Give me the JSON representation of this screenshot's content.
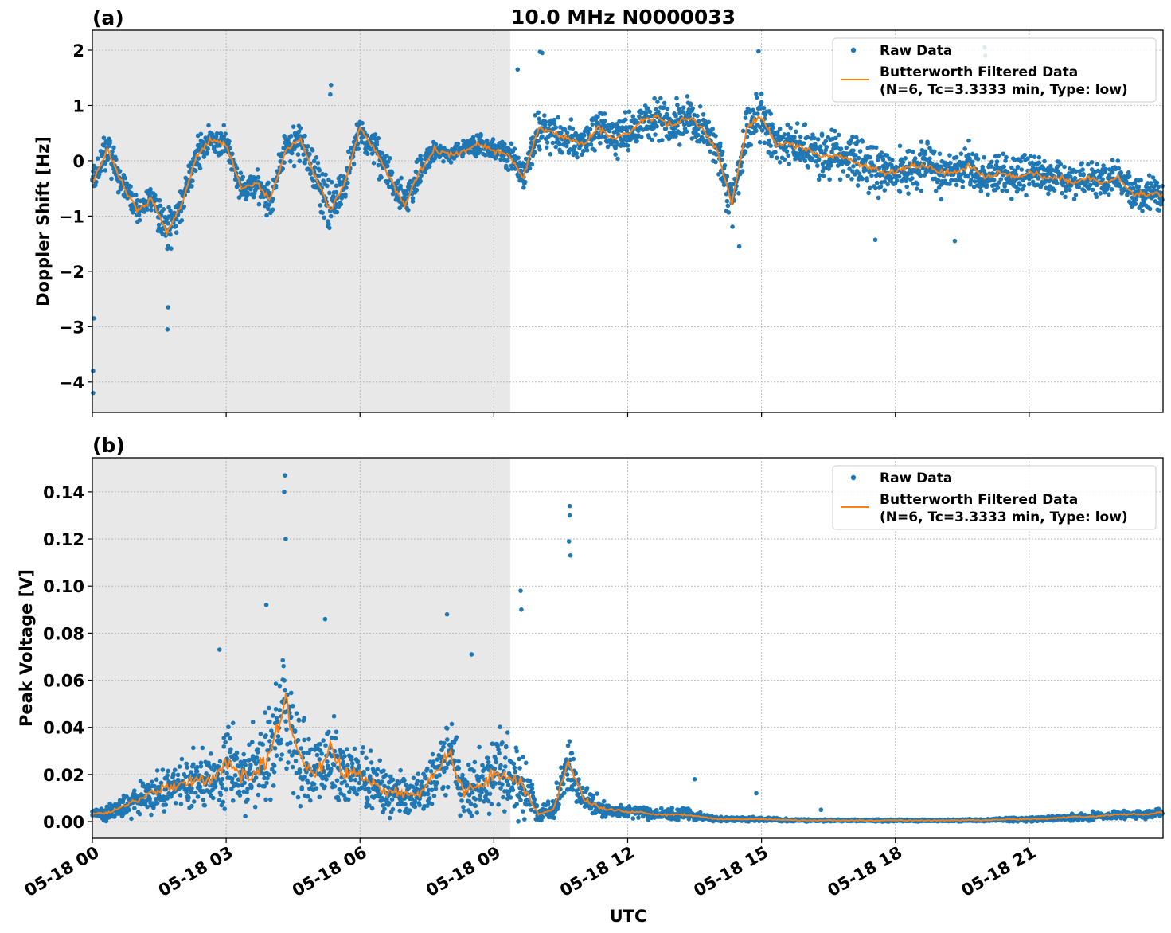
{
  "figure": {
    "title": "10.0 MHz N0000033",
    "xlabel": "UTC"
  },
  "colors": {
    "raw": "#1f77b4",
    "filtered": "#ff7f0e",
    "shading": "#e8e8e8",
    "grid": "#b0b0b0"
  },
  "x_ticks": [
    "05-18 00",
    "05-18 03",
    "05-18 06",
    "05-18 09",
    "05-18 12",
    "05-18 15",
    "05-18 18",
    "05-18 21"
  ],
  "chart_data": [
    {
      "type": "scatter",
      "panel_label": "(a)",
      "ylabel": "Doppler Shift [Hz]",
      "xlim": [
        "05-18 00:00",
        "05-19 00:00"
      ],
      "ylim": [
        -4.55,
        2.36
      ],
      "y_ticks": [
        "2",
        "1",
        "0",
        "−1",
        "−2",
        "−3",
        "−4"
      ],
      "y_tick_values": [
        2,
        1,
        0,
        -1,
        -2,
        -3,
        -4
      ],
      "grid": true,
      "legend_placement": "top-right",
      "shaded_interval": [
        "05-18 00:00",
        "05-18 09:22"
      ],
      "legend": {
        "raw": "Raw Data",
        "filtered_line1": "Butterworth Filtered Data",
        "filtered_line2": "(N=6, Tc=3.3333 min, Type: low)"
      },
      "times": [
        "00:00",
        "00:20",
        "00:40",
        "01:00",
        "01:20",
        "01:40",
        "02:00",
        "02:20",
        "02:40",
        "03:00",
        "03:20",
        "03:40",
        "04:00",
        "04:20",
        "04:40",
        "05:00",
        "05:20",
        "05:40",
        "06:00",
        "06:20",
        "06:40",
        "07:00",
        "07:20",
        "07:40",
        "08:00",
        "08:20",
        "08:40",
        "09:00",
        "09:20",
        "09:40",
        "10:00",
        "10:20",
        "10:40",
        "11:00",
        "11:20",
        "11:40",
        "12:00",
        "12:20",
        "12:40",
        "13:00",
        "13:20",
        "13:40",
        "14:00",
        "14:20",
        "14:40",
        "15:00",
        "15:20",
        "15:40",
        "16:00",
        "16:20",
        "16:40",
        "17:00",
        "17:20",
        "17:40",
        "18:00",
        "18:20",
        "18:40",
        "19:00",
        "19:20",
        "19:40",
        "20:00",
        "20:20",
        "20:40",
        "21:00",
        "21:20",
        "21:40",
        "22:00",
        "22:20",
        "22:40",
        "23:00",
        "23:20",
        "23:40",
        "24:00"
      ],
      "series": [
        {
          "name": "Butterworth Filtered Data",
          "kind": "line",
          "values": [
            -0.4,
            0.2,
            -0.4,
            -0.9,
            -0.7,
            -1.3,
            -0.8,
            0.1,
            0.4,
            0.3,
            -0.5,
            -0.4,
            -0.7,
            0.2,
            0.4,
            -0.3,
            -0.9,
            -0.4,
            0.6,
            0.2,
            -0.3,
            -0.8,
            -0.2,
            0.2,
            0.1,
            0.2,
            0.3,
            0.2,
            0.1,
            -0.3,
            0.6,
            0.5,
            0.4,
            0.3,
            0.6,
            0.4,
            0.5,
            0.7,
            0.8,
            0.6,
            0.8,
            0.6,
            0.2,
            -0.8,
            0.6,
            0.8,
            0.3,
            0.3,
            0.2,
            0.1,
            0.1,
            0.0,
            -0.1,
            -0.2,
            -0.2,
            -0.1,
            -0.1,
            -0.2,
            -0.2,
            -0.1,
            -0.3,
            -0.2,
            -0.3,
            -0.2,
            -0.3,
            -0.3,
            -0.4,
            -0.3,
            -0.4,
            -0.3,
            -0.6,
            -0.6,
            -0.6
          ]
        },
        {
          "name": "Raw Data",
          "kind": "scatter",
          "spread": [
            0.3,
            0.4,
            0.3,
            0.3,
            0.3,
            0.5,
            0.4,
            0.4,
            0.3,
            0.3,
            0.25,
            0.3,
            0.4,
            0.35,
            0.4,
            0.5,
            0.6,
            0.5,
            0.4,
            0.4,
            0.4,
            0.4,
            0.35,
            0.2,
            0.15,
            0.2,
            0.3,
            0.3,
            0.3,
            0.3,
            0.5,
            0.4,
            0.4,
            0.35,
            0.4,
            0.4,
            0.4,
            0.4,
            0.45,
            0.45,
            0.4,
            0.4,
            0.45,
            0.5,
            0.5,
            0.6,
            0.45,
            0.4,
            0.45,
            0.45,
            0.5,
            0.5,
            0.55,
            0.55,
            0.5,
            0.5,
            0.5,
            0.5,
            0.45,
            0.45,
            0.45,
            0.4,
            0.4,
            0.4,
            0.35,
            0.35,
            0.35,
            0.35,
            0.35,
            0.35,
            0.35,
            0.35,
            0.35
          ],
          "outliers": [
            [
              "00:01",
              -4.2
            ],
            [
              "00:01",
              -3.8
            ],
            [
              "00:02",
              -2.85
            ],
            [
              "01:41",
              -3.05
            ],
            [
              "01:42",
              -2.65
            ],
            [
              "05:21",
              1.37
            ],
            [
              "05:20",
              1.2
            ],
            [
              "09:32",
              1.65
            ],
            [
              "10:02",
              1.97
            ],
            [
              "10:05",
              1.95
            ],
            [
              "14:30",
              -1.55
            ],
            [
              "14:56",
              1.98
            ],
            [
              "20:00",
              2.05
            ],
            [
              "20:01",
              1.9
            ],
            [
              "19:20",
              -1.45
            ],
            [
              "17:33",
              -1.43
            ]
          ]
        }
      ]
    },
    {
      "type": "scatter",
      "panel_label": "(b)",
      "ylabel": "Peak Voltage [V]",
      "xlim": [
        "05-18 00:00",
        "05-19 00:00"
      ],
      "ylim": [
        -0.0071,
        0.1545
      ],
      "y_ticks": [
        "0.00",
        "0.02",
        "0.04",
        "0.06",
        "0.08",
        "0.10",
        "0.12",
        "0.14"
      ],
      "y_tick_values": [
        0,
        0.02,
        0.04,
        0.06,
        0.08,
        0.1,
        0.12,
        0.14
      ],
      "grid": true,
      "legend_placement": "top-right",
      "shaded_interval": [
        "05-18 00:00",
        "05-18 09:22"
      ],
      "legend": {
        "raw": "Raw Data",
        "filtered_line1": "Butterworth Filtered Data",
        "filtered_line2": "(N=6, Tc=3.3333 min, Type: low)"
      },
      "series": [
        {
          "name": "Butterworth Filtered Data",
          "kind": "line",
          "values": [
            0.003,
            0.004,
            0.006,
            0.009,
            0.012,
            0.015,
            0.016,
            0.018,
            0.016,
            0.025,
            0.02,
            0.02,
            0.03,
            0.05,
            0.025,
            0.02,
            0.03,
            0.02,
            0.02,
            0.015,
            0.013,
            0.012,
            0.011,
            0.02,
            0.03,
            0.012,
            0.015,
            0.02,
            0.02,
            0.015,
            0.003,
            0.005,
            0.025,
            0.01,
            0.006,
            0.005,
            0.004,
            0.004,
            0.003,
            0.003,
            0.003,
            0.002,
            0.001,
            0.001,
            0.001,
            0.001,
            0.0008,
            0.0006,
            0.0006,
            0.0005,
            0.0005,
            0.0005,
            0.0005,
            0.0005,
            0.0005,
            0.0005,
            0.0005,
            0.0005,
            0.0005,
            0.0006,
            0.0006,
            0.0008,
            0.001,
            0.001,
            0.0012,
            0.0015,
            0.002,
            0.002,
            0.0025,
            0.003,
            0.003,
            0.003,
            0.004
          ]
        },
        {
          "name": "Raw Data",
          "kind": "scatter",
          "spread": [
            0.003,
            0.004,
            0.005,
            0.008,
            0.01,
            0.012,
            0.013,
            0.015,
            0.015,
            0.022,
            0.02,
            0.02,
            0.025,
            0.035,
            0.022,
            0.02,
            0.025,
            0.02,
            0.018,
            0.014,
            0.012,
            0.011,
            0.01,
            0.015,
            0.02,
            0.012,
            0.015,
            0.018,
            0.02,
            0.02,
            0.003,
            0.005,
            0.015,
            0.008,
            0.005,
            0.004,
            0.003,
            0.003,
            0.003,
            0.003,
            0.003,
            0.002,
            0.001,
            0.001,
            0.001,
            0.001,
            0.0008,
            0.0006,
            0.0006,
            0.0005,
            0.0005,
            0.0005,
            0.0005,
            0.0005,
            0.0005,
            0.0005,
            0.0005,
            0.0005,
            0.0005,
            0.0006,
            0.0006,
            0.0008,
            0.001,
            0.001,
            0.0012,
            0.0015,
            0.002,
            0.002,
            0.002,
            0.002,
            0.002,
            0.002,
            0.003
          ],
          "outliers": [
            [
              "04:19",
              0.147
            ],
            [
              "04:18",
              0.14
            ],
            [
              "04:20",
              0.12
            ],
            [
              "10:42",
              0.134
            ],
            [
              "10:42",
              0.13
            ],
            [
              "10:41",
              0.119
            ],
            [
              "10:43",
              0.113
            ],
            [
              "09:36",
              0.098
            ],
            [
              "09:37",
              0.09
            ],
            [
              "03:54",
              0.092
            ],
            [
              "07:57",
              0.088
            ],
            [
              "05:13",
              0.086
            ],
            [
              "08:30",
              0.071
            ],
            [
              "02:51",
              0.073
            ],
            [
              "13:30",
              0.018
            ],
            [
              "14:53",
              0.012
            ],
            [
              "16:20",
              0.005
            ]
          ]
        }
      ]
    }
  ]
}
